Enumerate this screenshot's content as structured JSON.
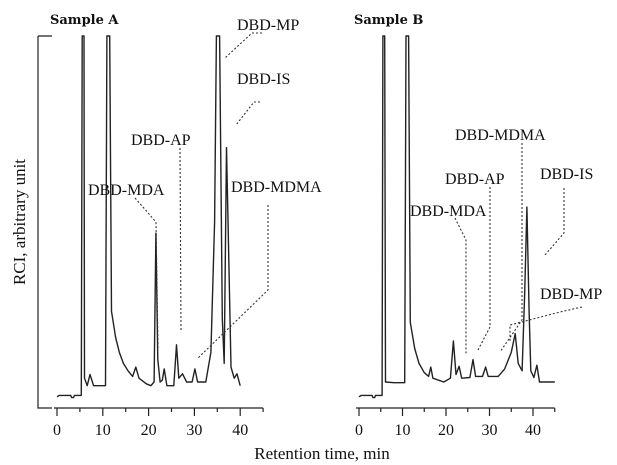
{
  "chart_data": {
    "type": "line",
    "ylabel": "RCI, arbitrary unit",
    "xlabel": "Retention time, min",
    "xlim": [
      0,
      45
    ],
    "x_ticks": [
      0,
      10,
      20,
      30,
      40
    ],
    "panels": [
      {
        "title": "Sample A",
        "trace": [
          [
            0,
            30
          ],
          [
            0.5,
            34
          ],
          [
            3,
            34
          ],
          [
            3.2,
            28
          ],
          [
            3.6,
            28
          ],
          [
            3.8,
            34
          ],
          [
            5.3,
            34
          ],
          [
            5.5,
            1000
          ],
          [
            5.9,
            1000
          ],
          [
            6.0,
            80
          ],
          [
            6.6,
            60
          ],
          [
            7.2,
            90
          ],
          [
            8.0,
            60
          ],
          [
            10.6,
            60
          ],
          [
            10.9,
            1000
          ],
          [
            11.5,
            1000
          ],
          [
            11.9,
            260
          ],
          [
            12.8,
            190
          ],
          [
            13.6,
            150
          ],
          [
            14.5,
            120
          ],
          [
            15.5,
            100
          ],
          [
            16.5,
            85
          ],
          [
            17.2,
            110
          ],
          [
            17.9,
            80
          ],
          [
            19.5,
            65
          ],
          [
            20.5,
            60
          ],
          [
            21.2,
            70
          ],
          [
            21.6,
            470
          ],
          [
            22.0,
            130
          ],
          [
            22.5,
            70
          ],
          [
            23.0,
            75
          ],
          [
            23.4,
            105
          ],
          [
            24.0,
            60
          ],
          [
            25.5,
            60
          ],
          [
            26.1,
            170
          ],
          [
            26.6,
            80
          ],
          [
            27.4,
            92
          ],
          [
            28.3,
            70
          ],
          [
            29.5,
            70
          ],
          [
            30.1,
            105
          ],
          [
            30.7,
            70
          ],
          [
            32.5,
            70
          ],
          [
            33.6,
            150
          ],
          [
            34.4,
            500
          ],
          [
            34.8,
            1000
          ],
          [
            35.5,
            1000
          ],
          [
            36.1,
            240
          ],
          [
            36.5,
            120
          ],
          [
            37.0,
            700
          ],
          [
            37.5,
            400
          ],
          [
            38.0,
            110
          ],
          [
            38.7,
            80
          ],
          [
            39.3,
            92
          ],
          [
            40.0,
            60
          ]
        ],
        "peaks": [
          {
            "name": "DBD-MP",
            "rt": 35.1
          },
          {
            "name": "DBD-IS",
            "rt": 37.0
          },
          {
            "name": "DBD-AP",
            "rt": 26.1
          },
          {
            "name": "DBD-MDA",
            "rt": 21.6
          },
          {
            "name": "DBD-MDMA",
            "rt": 30.1
          }
        ]
      },
      {
        "title": "Sample B",
        "trace": [
          [
            0,
            30
          ],
          [
            0.5,
            34
          ],
          [
            3,
            34
          ],
          [
            3.2,
            28
          ],
          [
            3.6,
            28
          ],
          [
            3.8,
            34
          ],
          [
            5.3,
            34
          ],
          [
            5.5,
            1000
          ],
          [
            5.9,
            1000
          ],
          [
            6.1,
            70
          ],
          [
            8,
            68
          ],
          [
            10.5,
            68
          ],
          [
            10.8,
            1000
          ],
          [
            11.4,
            1000
          ],
          [
            11.8,
            230
          ],
          [
            12.8,
            160
          ],
          [
            13.8,
            120
          ],
          [
            15,
            95
          ],
          [
            16,
            85
          ],
          [
            16.5,
            110
          ],
          [
            17,
            80
          ],
          [
            19.5,
            70
          ],
          [
            21,
            80
          ],
          [
            21.7,
            180
          ],
          [
            22.3,
            90
          ],
          [
            23.0,
            112
          ],
          [
            23.6,
            80
          ],
          [
            25.5,
            82
          ],
          [
            26.2,
            130
          ],
          [
            26.8,
            85
          ],
          [
            28.4,
            85
          ],
          [
            29.1,
            110
          ],
          [
            29.7,
            85
          ],
          [
            32,
            85
          ],
          [
            33.5,
            105
          ],
          [
            35,
            150
          ],
          [
            35.9,
            200
          ],
          [
            36.6,
            120
          ],
          [
            37.5,
            100
          ],
          [
            38.1,
            310
          ],
          [
            38.6,
            540
          ],
          [
            39.1,
            260
          ],
          [
            39.5,
            100
          ],
          [
            40.2,
            82
          ],
          [
            40.9,
            115
          ],
          [
            41.5,
            70
          ],
          [
            45,
            70
          ]
        ],
        "peaks": [
          {
            "name": "DBD-MDMA",
            "rt": 36.2
          },
          {
            "name": "DBD-AP",
            "rt": 26.2
          },
          {
            "name": "DBD-IS",
            "rt": 38.6
          },
          {
            "name": "DBD-MDA",
            "rt": 23.0
          },
          {
            "name": "DBD-MP",
            "rt": 36.2
          }
        ]
      }
    ]
  }
}
